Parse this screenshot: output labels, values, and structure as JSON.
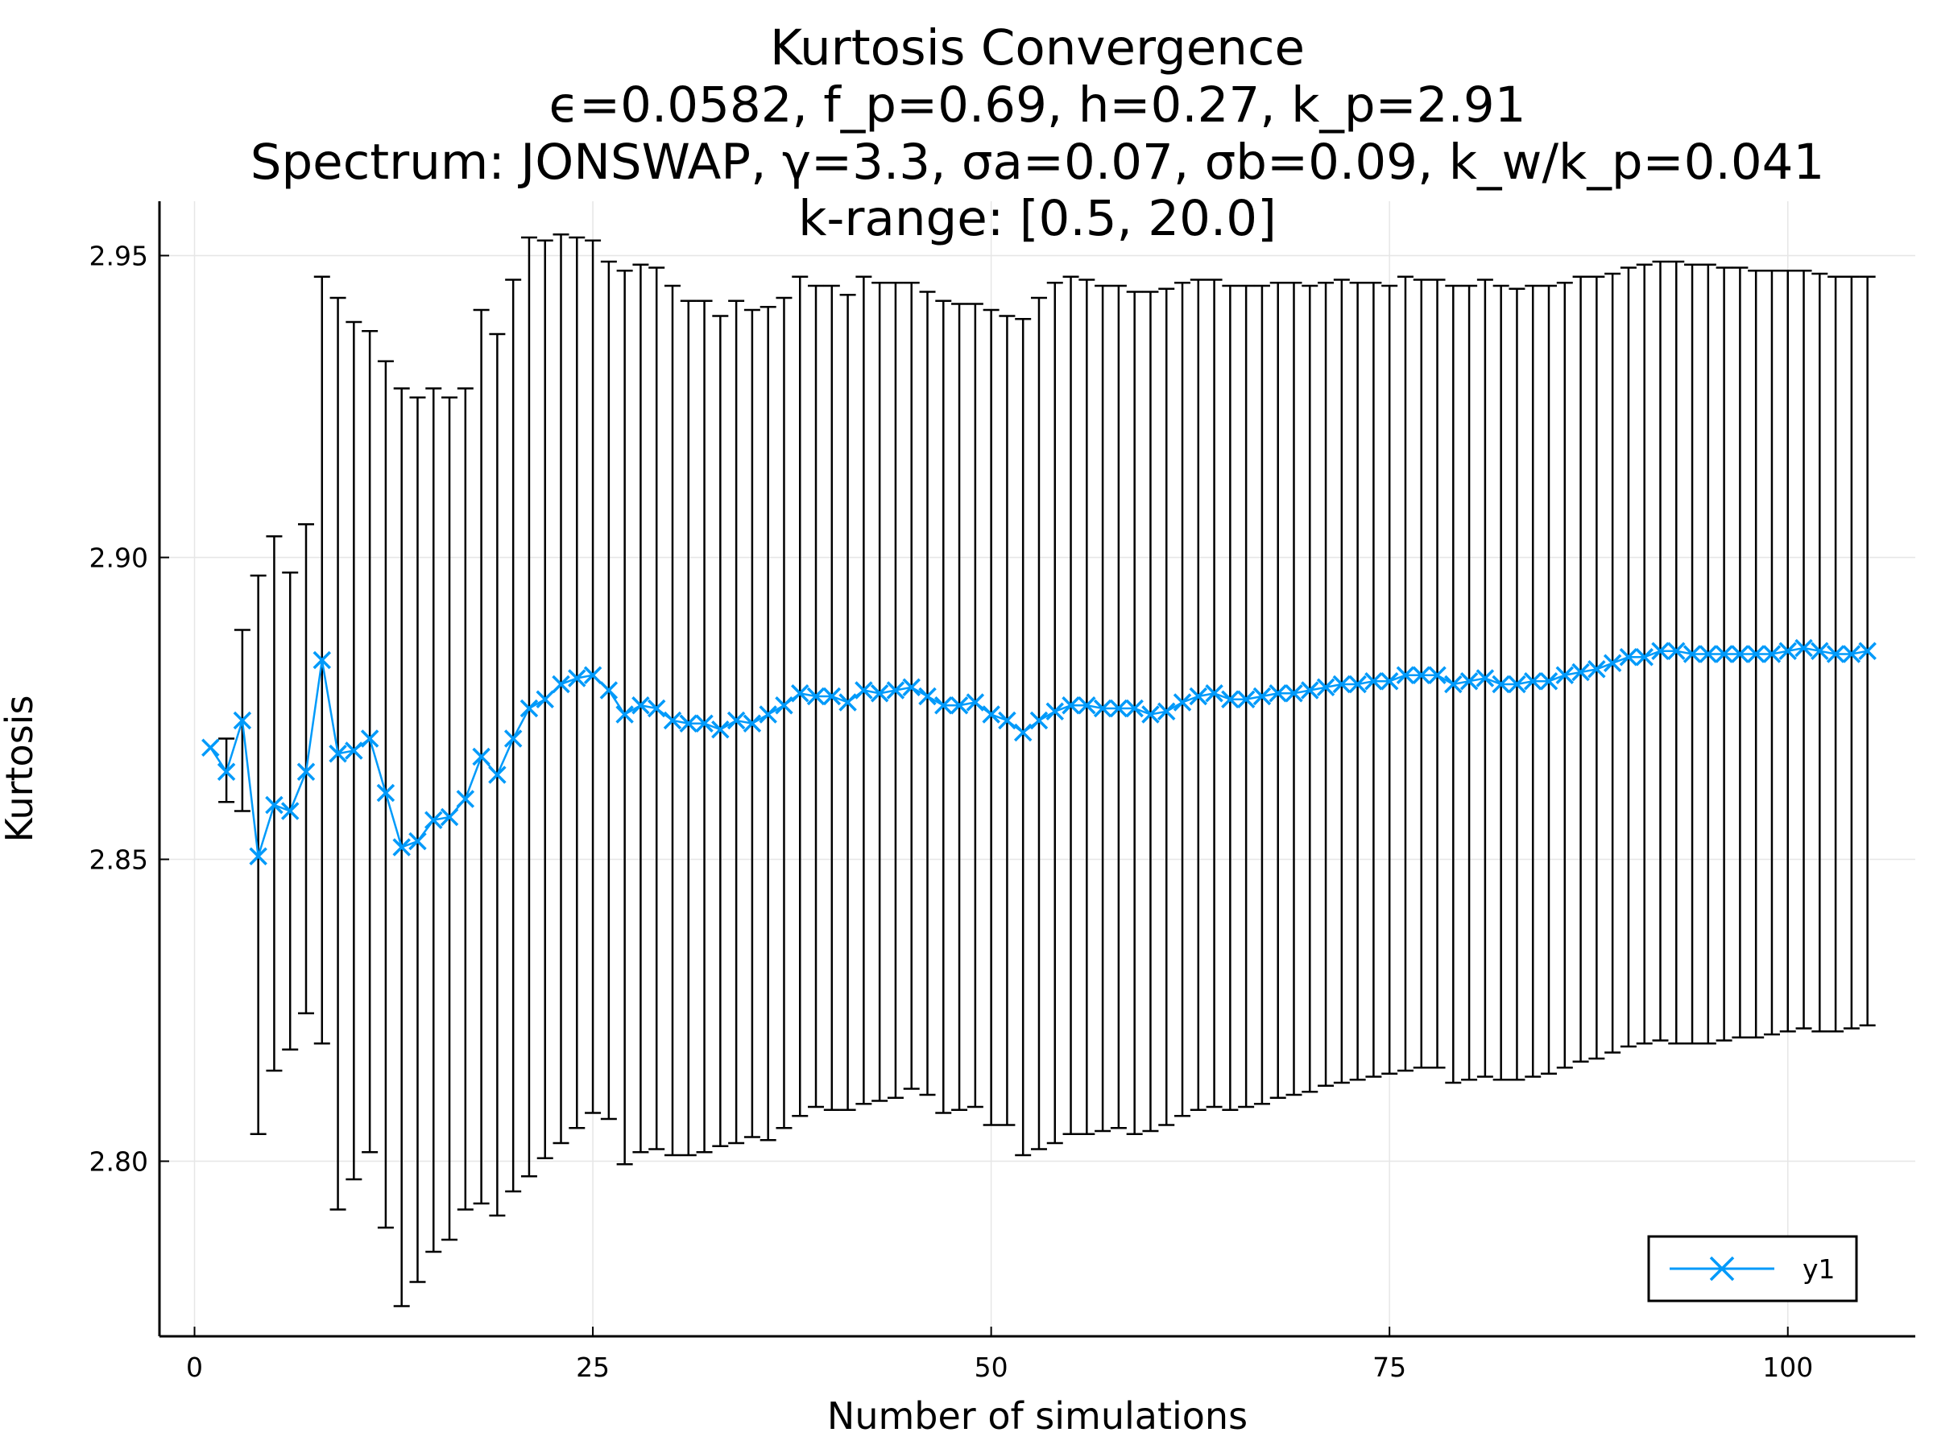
{
  "chart_data": {
    "type": "scatter",
    "title_lines": [
      "Kurtosis Convergence",
      "ϵ=0.0582, f_p=0.69, h=0.27, k_p=2.91",
      "Spectrum: JONSWAP, γ=3.3, σa=0.07, σb=0.09, k_w/k_p=0.041",
      "k-range: [0.5, 20.0]"
    ],
    "xlabel": "Number of simulations",
    "ylabel": "Kurtosis",
    "xlim": [
      -2.2,
      108.0
    ],
    "ylim": [
      2.771,
      2.959
    ],
    "x_ticks": [
      0,
      25,
      50,
      75,
      100
    ],
    "x_tick_labels": [
      "0",
      "25",
      "50",
      "75",
      "100"
    ],
    "y_ticks": [
      2.8,
      2.85,
      2.9,
      2.95
    ],
    "y_tick_labels": [
      "2.80",
      "2.85",
      "2.90",
      "2.95"
    ],
    "grid": true,
    "legend_position": "bottom-right",
    "series": [
      {
        "name": "y1",
        "color": "#009AFA",
        "marker": "x",
        "errorbar_color": "#000000",
        "x": [
          1,
          2,
          3,
          4,
          5,
          6,
          7,
          8,
          9,
          10,
          11,
          12,
          13,
          14,
          15,
          16,
          17,
          18,
          19,
          20,
          21,
          22,
          23,
          24,
          25,
          26,
          27,
          28,
          29,
          30,
          31,
          32,
          33,
          34,
          35,
          36,
          37,
          38,
          39,
          40,
          41,
          42,
          43,
          44,
          45,
          46,
          47,
          48,
          49,
          50,
          51,
          52,
          53,
          54,
          55,
          56,
          57,
          58,
          59,
          60,
          61,
          62,
          63,
          64,
          65,
          66,
          67,
          68,
          69,
          70,
          71,
          72,
          73,
          74,
          75,
          76,
          77,
          78,
          79,
          80,
          81,
          82,
          83,
          84,
          85,
          86,
          87,
          88,
          89,
          90,
          91,
          92,
          93,
          94,
          95,
          96,
          97,
          98,
          99,
          100,
          101,
          102,
          103,
          104,
          105
        ],
        "y": [
          2.8685,
          2.8645,
          2.873,
          2.8505,
          2.859,
          2.858,
          2.8645,
          2.883,
          2.8675,
          2.868,
          2.87,
          2.861,
          2.852,
          2.853,
          2.8565,
          2.857,
          2.86,
          2.867,
          2.864,
          2.87,
          2.875,
          2.8765,
          2.879,
          2.88,
          2.8805,
          2.878,
          2.874,
          2.8755,
          2.875,
          2.873,
          2.8725,
          2.8725,
          2.8715,
          2.873,
          2.8725,
          2.874,
          2.8755,
          2.8775,
          2.877,
          2.877,
          2.876,
          2.878,
          2.8775,
          2.878,
          2.8785,
          2.877,
          2.8755,
          2.8755,
          2.876,
          2.874,
          2.873,
          2.871,
          2.873,
          2.8745,
          2.8755,
          2.8755,
          2.875,
          2.875,
          2.875,
          2.874,
          2.8745,
          2.876,
          2.877,
          2.8775,
          2.8765,
          2.8765,
          2.877,
          2.8775,
          2.8775,
          2.878,
          2.8785,
          2.879,
          2.879,
          2.8795,
          2.8795,
          2.8805,
          2.8805,
          2.8805,
          2.879,
          2.8795,
          2.88,
          2.879,
          2.879,
          2.8795,
          2.8795,
          2.8805,
          2.881,
          2.8815,
          2.8825,
          2.8835,
          2.8835,
          2.8845,
          2.8845,
          2.884,
          2.884,
          2.884,
          2.884,
          2.884,
          2.884,
          2.8845,
          2.885,
          2.8845,
          2.884,
          2.884,
          2.8845
        ],
        "yerr_low": [
          null,
          2.8595,
          2.858,
          2.8045,
          2.815,
          2.8185,
          2.8245,
          2.8195,
          2.792,
          2.797,
          2.8015,
          2.789,
          2.776,
          2.78,
          2.785,
          2.787,
          2.792,
          2.793,
          2.791,
          2.795,
          2.7975,
          2.8005,
          2.803,
          2.8055,
          2.808,
          2.807,
          2.7995,
          2.8015,
          2.802,
          2.801,
          2.801,
          2.8015,
          2.8025,
          2.803,
          2.804,
          2.8035,
          2.8055,
          2.8075,
          2.809,
          2.8085,
          2.8085,
          2.8095,
          2.81,
          2.8105,
          2.812,
          2.811,
          2.808,
          2.8085,
          2.809,
          2.806,
          2.806,
          2.801,
          2.802,
          2.803,
          2.8045,
          2.8045,
          2.805,
          2.8055,
          2.8045,
          2.805,
          2.806,
          2.8075,
          2.8085,
          2.809,
          2.8085,
          2.809,
          2.8095,
          2.8105,
          2.811,
          2.8115,
          2.8125,
          2.813,
          2.8135,
          2.814,
          2.8145,
          2.815,
          2.8155,
          2.8155,
          2.813,
          2.8135,
          2.814,
          2.8135,
          2.8135,
          2.814,
          2.8145,
          2.8155,
          2.8165,
          2.817,
          2.818,
          2.819,
          2.8195,
          2.82,
          2.8195,
          2.8195,
          2.8195,
          2.82,
          2.8205,
          2.8205,
          2.821,
          2.8215,
          2.822,
          2.8215,
          2.8215,
          2.822,
          2.8225
        ],
        "yerr_high": [
          null,
          2.87,
          2.888,
          2.897,
          2.9035,
          2.8975,
          2.9055,
          2.9465,
          2.943,
          2.939,
          2.9375,
          2.9325,
          2.928,
          2.9265,
          2.928,
          2.9265,
          2.928,
          2.941,
          2.937,
          2.946,
          2.953,
          2.9525,
          2.9535,
          2.953,
          2.9525,
          2.949,
          2.9475,
          2.9485,
          2.948,
          2.945,
          2.9425,
          2.9425,
          2.94,
          2.9425,
          2.941,
          2.9415,
          2.943,
          2.9465,
          2.945,
          2.945,
          2.9435,
          2.9465,
          2.9455,
          2.9455,
          2.9455,
          2.944,
          2.9425,
          2.942,
          2.942,
          2.941,
          2.94,
          2.9395,
          2.943,
          2.9455,
          2.9465,
          2.946,
          2.945,
          2.945,
          2.944,
          2.944,
          2.9445,
          2.9455,
          2.946,
          2.946,
          2.945,
          2.945,
          2.945,
          2.9455,
          2.9455,
          2.945,
          2.9455,
          2.946,
          2.9455,
          2.9455,
          2.945,
          2.9465,
          2.946,
          2.946,
          2.945,
          2.945,
          2.946,
          2.945,
          2.9445,
          2.945,
          2.945,
          2.9455,
          2.9465,
          2.9465,
          2.947,
          2.948,
          2.9485,
          2.949,
          2.949,
          2.9485,
          2.9485,
          2.948,
          2.948,
          2.9475,
          2.9475,
          2.9475,
          2.9475,
          2.947,
          2.9465,
          2.9465,
          2.9465
        ]
      }
    ]
  }
}
